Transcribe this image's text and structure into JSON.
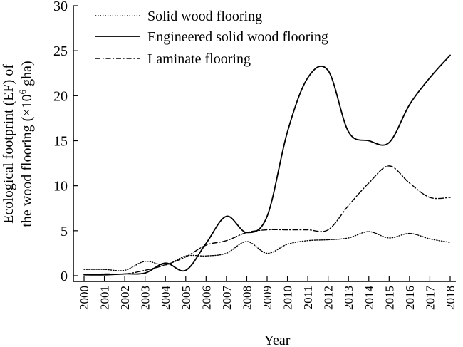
{
  "chart_data": {
    "type": "line",
    "title": "",
    "xlabel": "Year",
    "ylabel_line1": "Ecological footprint (EF) of",
    "ylabel_line2_pre": "the wood flooring (×10",
    "ylabel_line2_sup": "6",
    "ylabel_line2_post": " gha)",
    "categories": [
      "2000",
      "2001",
      "2002",
      "2003",
      "2004",
      "2005",
      "2006",
      "2007",
      "2008",
      "2009",
      "2010",
      "2011",
      "2012",
      "2013",
      "2014",
      "2015",
      "2016",
      "2017",
      "2018"
    ],
    "yticks": [
      "0",
      "5",
      "10",
      "15",
      "20",
      "25",
      "30"
    ],
    "ylim": [
      0,
      30
    ],
    "grid": false,
    "legend_position": "top-left",
    "series": [
      {
        "name": "Solid wood flooring",
        "style": "dotted",
        "color": "#000000",
        "values": [
          0.7,
          0.7,
          0.6,
          1.6,
          1.2,
          2.2,
          2.2,
          2.5,
          3.8,
          2.5,
          3.5,
          3.9,
          4.0,
          4.2,
          4.9,
          4.2,
          4.7,
          4.1,
          3.7
        ]
      },
      {
        "name": "Engineered solid wood flooring",
        "style": "solid",
        "color": "#000000",
        "values": [
          0.1,
          0.1,
          0.2,
          0.3,
          1.4,
          0.6,
          3.6,
          6.6,
          4.8,
          6.6,
          16.0,
          22.0,
          22.8,
          16.0,
          15.0,
          14.8,
          19.0,
          22.0,
          24.5
        ]
      },
      {
        "name": "Laminate flooring",
        "style": "dash-dot",
        "color": "#000000",
        "values": [
          0.1,
          0.2,
          0.2,
          0.6,
          1.2,
          2.1,
          3.4,
          3.9,
          4.8,
          5.1,
          5.1,
          5.1,
          5.1,
          7.8,
          10.3,
          12.2,
          10.3,
          8.7,
          8.7
        ]
      }
    ]
  }
}
